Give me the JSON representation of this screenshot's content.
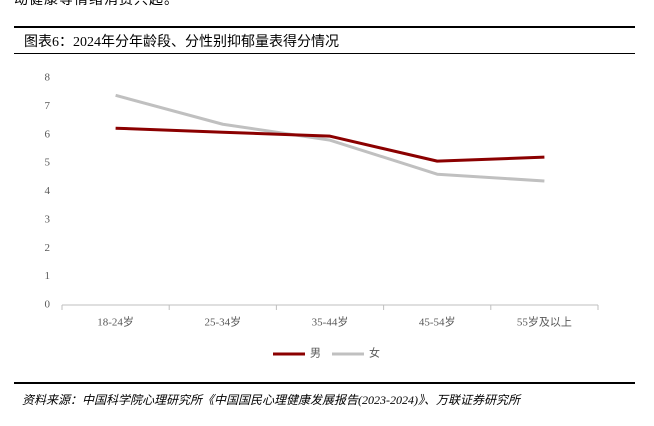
{
  "header": {
    "text": "动健康等情绪消费兴起。"
  },
  "chart_data": {
    "type": "line",
    "title": "图表6：2024年分年龄段、分性别抑郁量表得分情况",
    "categories": [
      "18-24岁",
      "25-34岁",
      "35-44岁",
      "45-54岁",
      "55岁及以上"
    ],
    "series": [
      {
        "name": "男",
        "color": "#8b0000",
        "values": [
          6.23,
          6.09,
          5.95,
          5.07,
          5.21
        ]
      },
      {
        "name": "女",
        "color": "#c0c0c0",
        "values": [
          7.39,
          6.37,
          5.81,
          4.61,
          4.37
        ]
      }
    ],
    "ylim": [
      0,
      8
    ],
    "yticks": [
      0,
      1,
      2,
      3,
      4,
      5,
      6,
      7,
      8
    ],
    "grid": false,
    "legend": "bottom"
  },
  "footer": {
    "source": "资料来源：中国科学院心理研究所《中国国民心理健康发展报告(2023-2024)》、万联证券研究所"
  }
}
